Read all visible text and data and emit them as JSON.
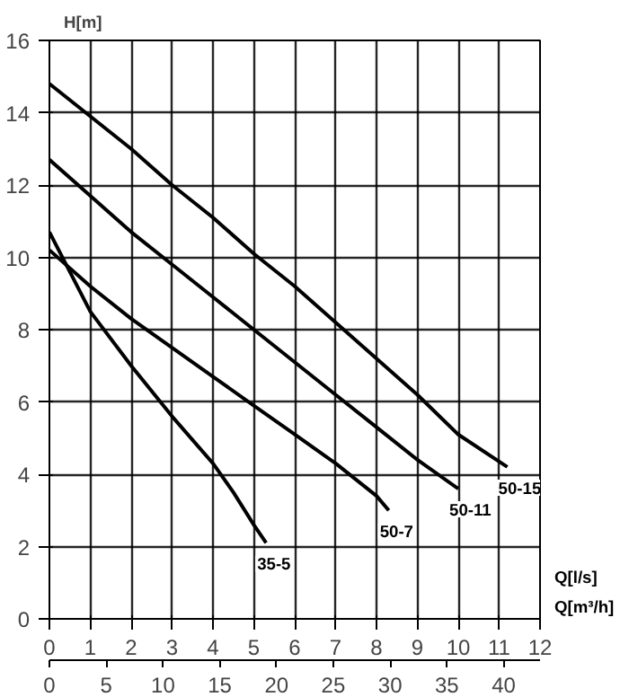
{
  "chart_data": {
    "type": "line",
    "ylabel": "H[m]",
    "xlabel": "Q[l/s]",
    "x2label": "Q[m³/h]",
    "xlim": [
      0,
      12
    ],
    "xticks": [
      0,
      1,
      2,
      3,
      4,
      5,
      6,
      7,
      8,
      9,
      10,
      11,
      12
    ],
    "x2lim": [
      0,
      43.2
    ],
    "x2ticks": [
      0,
      5,
      10,
      15,
      20,
      25,
      30,
      35,
      40
    ],
    "ylim": [
      0,
      16
    ],
    "yticks": [
      0,
      2,
      4,
      6,
      8,
      10,
      12,
      14,
      16
    ],
    "grid": true,
    "marker": "none",
    "line_style": "solid",
    "series": [
      {
        "name": "35-5",
        "color": "#000000",
        "x": [
          0,
          0.5,
          1,
          2,
          3,
          4,
          4.5,
          5,
          5.3
        ],
        "values": [
          10.7,
          9.6,
          8.5,
          7.0,
          5.6,
          4.3,
          3.5,
          2.6,
          2.1
        ]
      },
      {
        "name": "50-7",
        "color": "#000000",
        "x": [
          0,
          1,
          2,
          3,
          4,
          5,
          6,
          7,
          8,
          8.3
        ],
        "values": [
          10.2,
          9.2,
          8.3,
          7.5,
          6.7,
          5.9,
          5.1,
          4.3,
          3.4,
          3.0
        ]
      },
      {
        "name": "50-11",
        "color": "#000000",
        "x": [
          0,
          1,
          2,
          3,
          4,
          5,
          6,
          7,
          8,
          9,
          10
        ],
        "values": [
          12.7,
          11.7,
          10.7,
          9.8,
          8.9,
          8.0,
          7.1,
          6.2,
          5.3,
          4.4,
          3.6
        ]
      },
      {
        "name": "50-15",
        "color": "#000000",
        "x": [
          0,
          1,
          2,
          3,
          4,
          5,
          6,
          7,
          8,
          9,
          10,
          11.2
        ],
        "values": [
          14.8,
          13.9,
          13.0,
          12.0,
          11.1,
          10.1,
          9.2,
          8.2,
          7.2,
          6.2,
          5.1,
          4.2
        ]
      }
    ]
  }
}
